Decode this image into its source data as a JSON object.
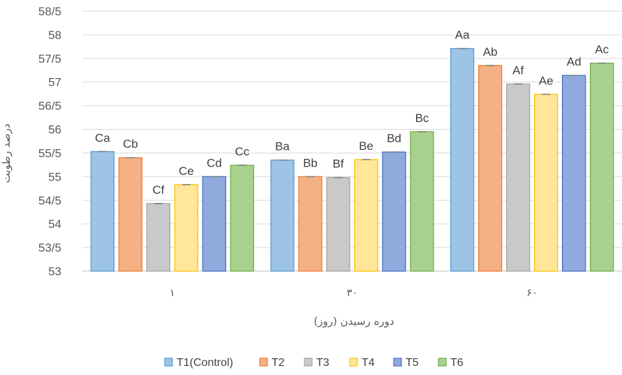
{
  "chart_data": {
    "type": "bar",
    "title": "",
    "xlabel": "دوره رسیدن (روز)",
    "ylabel": "درصد رطوبت",
    "categories": [
      "۱",
      "۳۰",
      "۶۰"
    ],
    "ylim": [
      53,
      58.5
    ],
    "ytick_values": [
      53,
      53.5,
      54,
      54.5,
      55,
      55.5,
      56,
      56.5,
      57,
      57.5,
      58,
      58.5
    ],
    "ytick_labels": [
      "53",
      "53/5",
      "54",
      "54/5",
      "55",
      "55/5",
      "56",
      "56/5",
      "57",
      "57/5",
      "58",
      "58/5"
    ],
    "grid": true,
    "legend_position": "bottom",
    "series": [
      {
        "name": "T1(Control)",
        "color": "#9DC3E6",
        "stroke": "#5B9BD5",
        "values": [
          55.53,
          55.35,
          57.71
        ],
        "labels": [
          "Ca",
          "Ba",
          "Aa"
        ]
      },
      {
        "name": "T2",
        "color": "#F4B183",
        "stroke": "#ED7D31",
        "values": [
          55.4,
          55.0,
          57.35
        ],
        "labels": [
          "Cb",
          "Bb",
          "Ab"
        ]
      },
      {
        "name": "T3",
        "color": "#C9C9C9",
        "stroke": "#A5A5A5",
        "values": [
          54.43,
          54.98,
          56.96
        ],
        "labels": [
          "Cf",
          "Bf",
          "Af"
        ]
      },
      {
        "name": "T4",
        "color": "#FFE699",
        "stroke": "#FFC000",
        "values": [
          54.83,
          55.36,
          56.74
        ],
        "labels": [
          "Ce",
          "Be",
          "Ae"
        ]
      },
      {
        "name": "T5",
        "color": "#8FAADC",
        "stroke": "#4472C4",
        "values": [
          55.0,
          55.52,
          57.14
        ],
        "labels": [
          "Cd",
          "Bd",
          "Ad"
        ]
      },
      {
        "name": "T6",
        "color": "#A9D18E",
        "stroke": "#70AD47",
        "values": [
          55.24,
          55.95,
          57.4
        ],
        "labels": [
          "Cc",
          "Bc",
          "Ac"
        ]
      }
    ]
  }
}
